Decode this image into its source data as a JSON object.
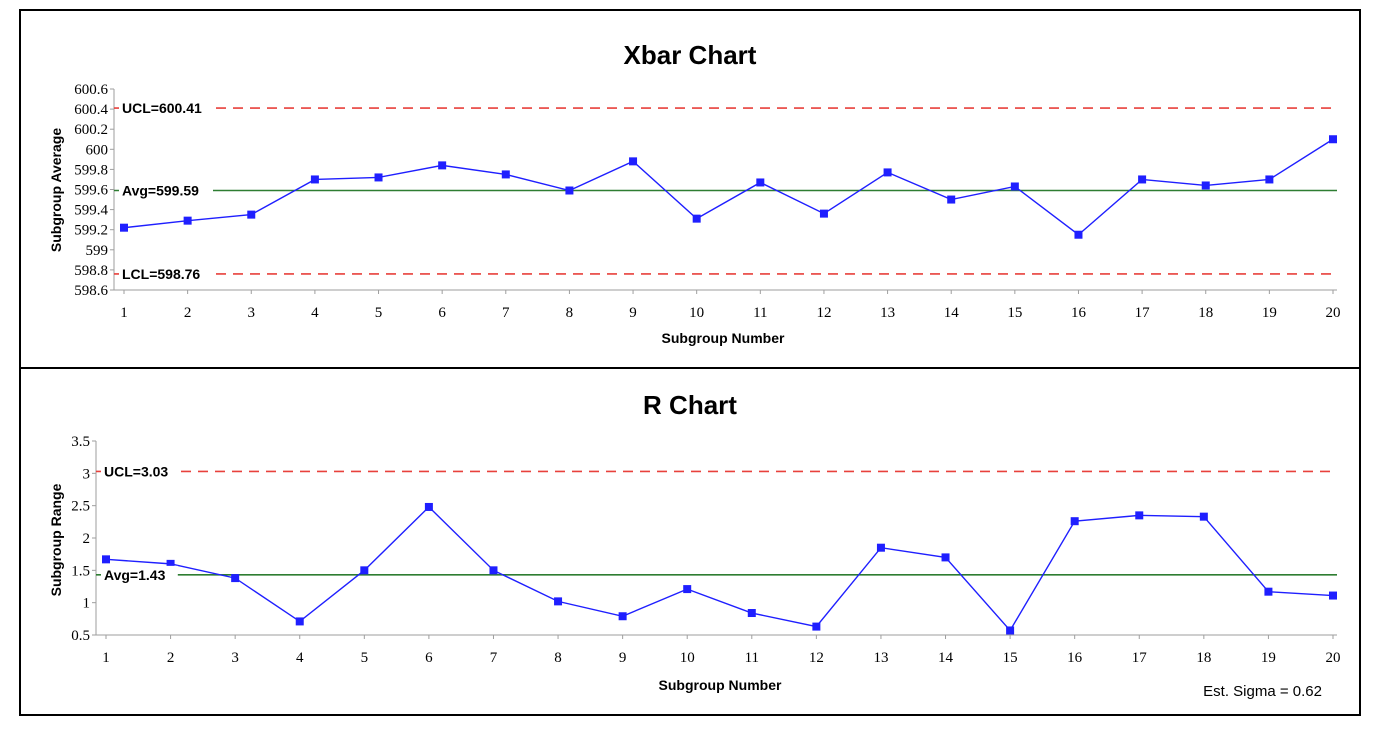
{
  "colors": {
    "series": "#1f1fff",
    "avg_line": "#2e7d32",
    "limit_line": "#e8413c",
    "frame": "#000000"
  },
  "chart_data": [
    {
      "type": "line",
      "title": "Xbar Chart",
      "xlabel": "Subgroup Number",
      "ylabel": "Subgroup Average",
      "x": [
        1,
        2,
        3,
        4,
        5,
        6,
        7,
        8,
        9,
        10,
        11,
        12,
        13,
        14,
        15,
        16,
        17,
        18,
        19,
        20
      ],
      "values": [
        599.22,
        599.29,
        599.35,
        599.7,
        599.72,
        599.84,
        599.75,
        599.59,
        599.88,
        599.31,
        599.67,
        599.36,
        599.77,
        599.5,
        599.63,
        599.15,
        599.7,
        599.64,
        599.7,
        600.1
      ],
      "ylim": [
        598.6,
        600.6
      ],
      "yticks": [
        "598.6",
        "598.8",
        "599",
        "599.2",
        "599.4",
        "599.6",
        "599.8",
        "600",
        "600.2",
        "600.4",
        "600.6"
      ],
      "xticks": [
        "1",
        "2",
        "3",
        "4",
        "5",
        "6",
        "7",
        "8",
        "9",
        "10",
        "11",
        "12",
        "13",
        "14",
        "15",
        "16",
        "17",
        "18",
        "19",
        "20"
      ],
      "ucl": 600.41,
      "avg": 599.59,
      "lcl": 598.76,
      "ucl_label": "UCL=600.41",
      "avg_label": "Avg=599.59",
      "lcl_label": "LCL=598.76",
      "grid": false,
      "marker": "square"
    },
    {
      "type": "line",
      "title": "R Chart",
      "xlabel": "Subgroup Number",
      "ylabel": "Subgroup Range",
      "x": [
        1,
        2,
        3,
        4,
        5,
        6,
        7,
        8,
        9,
        10,
        11,
        12,
        13,
        14,
        15,
        16,
        17,
        18,
        19,
        20
      ],
      "values": [
        1.67,
        1.6,
        1.38,
        0.71,
        1.5,
        2.48,
        1.5,
        1.02,
        0.79,
        1.21,
        0.84,
        0.63,
        1.85,
        1.7,
        0.57,
        2.26,
        2.35,
        2.33,
        1.17,
        1.11
      ],
      "ylim": [
        0.5,
        3.5
      ],
      "yticks": [
        "0.5",
        "1",
        "1.5",
        "2",
        "2.5",
        "3",
        "3.5"
      ],
      "xticks": [
        "1",
        "2",
        "3",
        "4",
        "5",
        "6",
        "7",
        "8",
        "9",
        "10",
        "11",
        "12",
        "13",
        "14",
        "15",
        "16",
        "17",
        "18",
        "19",
        "20"
      ],
      "ucl": 3.03,
      "avg": 1.43,
      "ucl_label": "UCL=3.03",
      "avg_label": "Avg=1.43",
      "grid": false,
      "marker": "square",
      "annotation": "Est. Sigma = 0.62"
    }
  ]
}
